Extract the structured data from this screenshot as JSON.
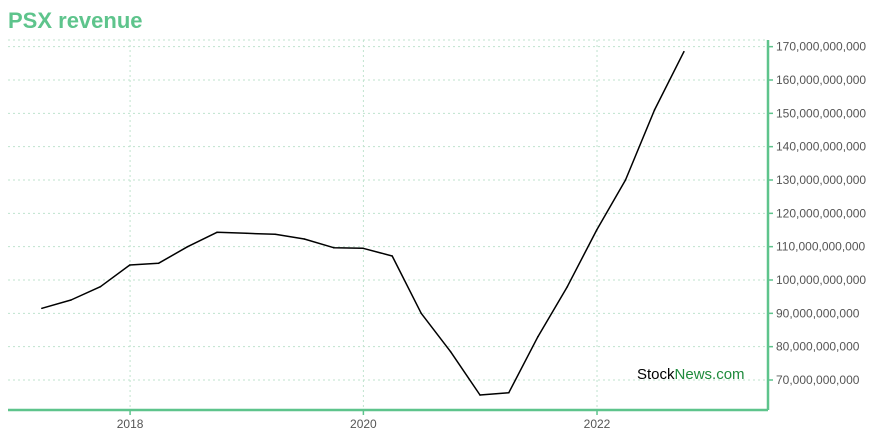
{
  "title": "PSX revenue",
  "watermark": {
    "part1": "Stock",
    "part2": "News.com"
  },
  "colors": {
    "accent": "#5ec48c",
    "line": "#000000",
    "grid": "#bfe3ce",
    "watermark_part1": "#000000",
    "watermark_part2": "#1e8a3c"
  },
  "chart_data": {
    "type": "line",
    "title": "PSX revenue",
    "xlabel": "",
    "ylabel": "",
    "x_ticks": [
      "2018",
      "2020",
      "2022"
    ],
    "y_ticks": [
      "70,000,000,000",
      "80,000,000,000",
      "90,000,000,000",
      "100,000,000,000",
      "110,000,000,000",
      "120,000,000,000",
      "130,000,000,000",
      "140,000,000,000",
      "150,000,000,000",
      "160,000,000,000",
      "170,000,000,000"
    ],
    "y_tick_values": [
      70000000000,
      80000000000,
      90000000000,
      100000000000,
      110000000000,
      120000000000,
      130000000000,
      140000000000,
      150000000000,
      160000000000,
      170000000000
    ],
    "x_tick_values": [
      "2018-01-01",
      "2020-01-01",
      "2022-01-01"
    ],
    "xlim": [
      "2016-12-15",
      "2023-06-20"
    ],
    "ylim": [
      61000000000,
      172000000000
    ],
    "y_axis_position": "right",
    "grid": true,
    "legend": "none",
    "series": [
      {
        "x": [
          "2017-03-31",
          "2017-06-30",
          "2017-09-30",
          "2017-12-31",
          "2018-03-31",
          "2018-06-30",
          "2018-09-30",
          "2018-12-31",
          "2019-03-31",
          "2019-06-30",
          "2019-09-30",
          "2019-12-31",
          "2020-03-31",
          "2020-06-30",
          "2020-09-30",
          "2020-12-31",
          "2021-03-31",
          "2021-06-30",
          "2021-09-30",
          "2021-12-31",
          "2022-03-31",
          "2022-06-30",
          "2022-09-30"
        ],
        "values": [
          91500000000,
          94000000000,
          98000000000,
          104500000000,
          105000000000,
          110000000000,
          114300000000,
          114000000000,
          113700000000,
          112300000000,
          109700000000,
          109500000000,
          107200000000,
          90000000000,
          78500000000,
          65500000000,
          66200000000,
          83000000000,
          98000000000,
          115000000000,
          130000000000,
          151000000000,
          168500000000
        ]
      }
    ]
  }
}
